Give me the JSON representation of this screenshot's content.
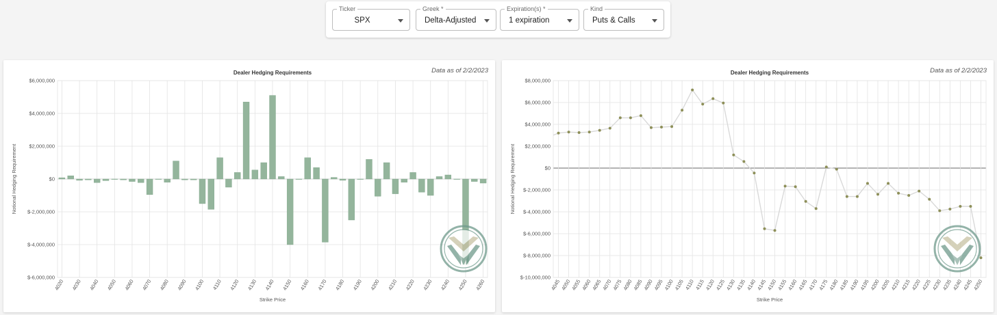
{
  "filters": [
    {
      "label": "Ticker",
      "value": "SPX"
    },
    {
      "label": "Greek *",
      "value": "Delta-Adjusted G..."
    },
    {
      "label": "Expiration(s) *",
      "value": "1 expiration"
    },
    {
      "label": "Kind",
      "value": "Puts & Calls"
    }
  ],
  "chart_data": [
    {
      "type": "bar",
      "title": "Dealer Hedging Requirements",
      "subtitle": "Data as of 2/2/2023",
      "xlabel": "Strike Price",
      "ylabel": "Notional Hedging Requirement",
      "ylim": [
        -6000000,
        6000000
      ],
      "y_ticks": [
        -6000000,
        -4000000,
        -2000000,
        0,
        2000000,
        4000000,
        6000000
      ],
      "y_tick_labels": [
        "$-6,000,000",
        "$-4,000,000",
        "$-2,000,000",
        "$0",
        "$2,000,000",
        "$4,000,000",
        "$6,000,000"
      ],
      "x_tick_labels": [
        "4020",
        "4030",
        "4040",
        "4050",
        "4060",
        "4070",
        "4080",
        "4090",
        "4100",
        "4110",
        "4120",
        "4130",
        "4140",
        "4150",
        "4160",
        "4170",
        "4180",
        "4190",
        "4200",
        "4210",
        "4220",
        "4230",
        "4240",
        "4250",
        "4260"
      ],
      "color": "#94b59c",
      "grid": true,
      "categories": [
        4020,
        4025,
        4030,
        4035,
        4040,
        4045,
        4050,
        4055,
        4060,
        4065,
        4070,
        4075,
        4080,
        4085,
        4090,
        4095,
        4100,
        4105,
        4110,
        4115,
        4120,
        4125,
        4130,
        4135,
        4140,
        4145,
        4150,
        4155,
        4160,
        4165,
        4170,
        4175,
        4180,
        4185,
        4190,
        4195,
        4200,
        4205,
        4210,
        4215,
        4220,
        4225,
        4230,
        4235,
        4240,
        4245,
        4250,
        4255,
        4260
      ],
      "values": [
        80000,
        200000,
        -80000,
        -50000,
        -220000,
        -100000,
        0,
        -50000,
        -150000,
        -220000,
        -950000,
        0,
        -200000,
        1100000,
        -50000,
        -50000,
        -1500000,
        -1850000,
        1300000,
        -500000,
        400000,
        4700000,
        550000,
        1000000,
        5100000,
        150000,
        -4000000,
        0,
        1300000,
        700000,
        -3850000,
        100000,
        -80000,
        -2500000,
        0,
        1200000,
        -1050000,
        1000000,
        -900000,
        -200000,
        400000,
        -800000,
        -1000000,
        150000,
        250000,
        0,
        -5200000,
        -150000,
        -250000
      ]
    },
    {
      "type": "line",
      "title": "Dealer Hedging Requirements",
      "subtitle": "Data as of 2/2/2023",
      "xlabel": "Strike Price",
      "ylabel": "Notional Hedging Requirement",
      "ylim": [
        -10000000,
        8000000
      ],
      "y_ticks": [
        -10000000,
        -8000000,
        -6000000,
        -4000000,
        -2000000,
        0,
        2000000,
        4000000,
        6000000,
        8000000
      ],
      "y_tick_labels": [
        "$-10,000,000",
        "$-8,000,000",
        "$-6,000,000",
        "$-4,000,000",
        "$-2,000,000",
        "$0",
        "$2,000,000",
        "$4,000,000",
        "$6,000,000",
        "$8,000,000"
      ],
      "x_tick_labels": [
        "4045",
        "4050",
        "4055",
        "4060",
        "4065",
        "4070",
        "4075",
        "4080",
        "4085",
        "4090",
        "4095",
        "4100",
        "4105",
        "4110",
        "4115",
        "4120",
        "4125",
        "4130",
        "4135",
        "4140",
        "4145",
        "4150",
        "4155",
        "4160",
        "4165",
        "4170",
        "4175",
        "4180",
        "4185",
        "4190",
        "4195",
        "4200",
        "4205",
        "4210",
        "4215",
        "4220",
        "4225",
        "4230",
        "4235",
        "4240",
        "4245",
        "4250"
      ],
      "line_color": "#d9d9d9",
      "point_color": "#8d8f58",
      "grid": true,
      "x": [
        4045,
        4050,
        4055,
        4060,
        4065,
        4070,
        4075,
        4080,
        4085,
        4090,
        4095,
        4100,
        4105,
        4110,
        4115,
        4120,
        4125,
        4130,
        4135,
        4140,
        4145,
        4150,
        4155,
        4160,
        4165,
        4170,
        4175,
        4180,
        4185,
        4190,
        4195,
        4200,
        4205,
        4210,
        4215,
        4220,
        4225,
        4230,
        4235,
        4240,
        4245,
        4250
      ],
      "values": [
        3200000,
        3300000,
        3250000,
        3300000,
        3450000,
        3650000,
        4600000,
        4600000,
        4800000,
        3700000,
        3750000,
        3800000,
        5300000,
        7150000,
        5850000,
        6350000,
        5950000,
        1200000,
        600000,
        -450000,
        -5550000,
        -5700000,
        -1650000,
        -1700000,
        -3050000,
        -3700000,
        100000,
        -100000,
        -2600000,
        -2600000,
        -1400000,
        -2400000,
        -1400000,
        -2300000,
        -2500000,
        -2100000,
        -2850000,
        -3900000,
        -3750000,
        -3500000,
        -3500000,
        -8200000
      ]
    }
  ]
}
